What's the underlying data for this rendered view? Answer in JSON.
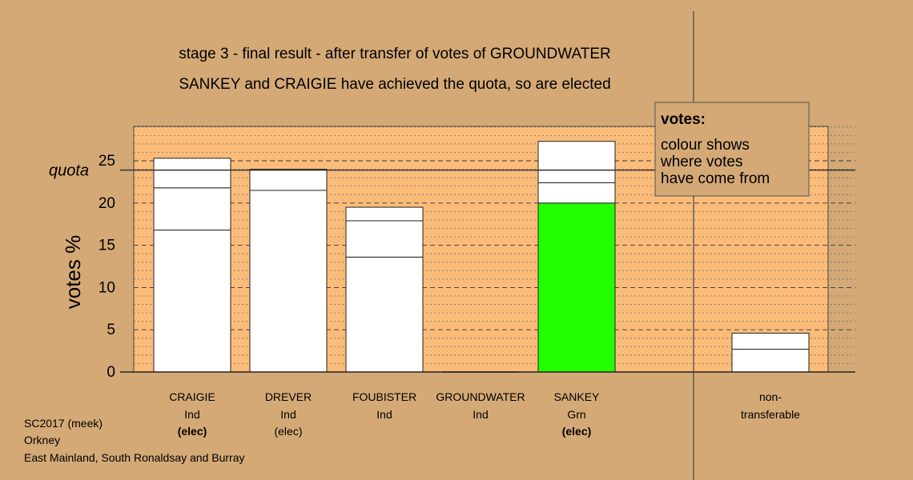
{
  "chart_data": {
    "type": "bar",
    "title": "stage 3 - final result - after transfer of votes of GROUNDWATER",
    "subtitle": "SANKEY and CRAIGIE have achieved the quota, so are elected",
    "ylabel": "votes %",
    "ylim": [
      0,
      29
    ],
    "yticks": [
      0,
      5,
      10,
      15,
      20,
      25
    ],
    "grid": true,
    "quota": {
      "label": "quota",
      "value": 23.9
    },
    "categories": [
      {
        "name": "CRAIGIE",
        "party": "Ind",
        "status": "(elec)",
        "status_bold": true
      },
      {
        "name": "DREVER",
        "party": "Ind",
        "status": "(elec)",
        "status_bold": false
      },
      {
        "name": "FOUBISTER",
        "party": "Ind",
        "status": "",
        "status_bold": false
      },
      {
        "name": "GROUNDWATER",
        "party": "Ind",
        "status": "",
        "status_bold": false
      },
      {
        "name": "SANKEY",
        "party": "Grn",
        "status": "(elec)",
        "status_bold": true
      }
    ],
    "segments": [
      [
        {
          "value": 16.8,
          "color": "#ffffff"
        },
        {
          "value": 5.0,
          "color": "#ffffff"
        },
        {
          "value": 3.5,
          "color": "#ffffff"
        }
      ],
      [
        {
          "value": 21.5,
          "color": "#ffffff"
        },
        {
          "value": 2.5,
          "color": "#ffffff"
        }
      ],
      [
        {
          "value": 13.6,
          "color": "#ffffff"
        },
        {
          "value": 4.3,
          "color": "#ffffff"
        },
        {
          "value": 1.6,
          "color": "#ffffff"
        }
      ],
      [],
      [
        {
          "value": 20.0,
          "color": "#22ff00"
        },
        {
          "value": 2.4,
          "color": "#ffffff"
        },
        {
          "value": 4.9,
          "color": "#ffffff"
        }
      ]
    ],
    "nontransferable": {
      "label_line1": "non-",
      "label_line2": "transferable",
      "segments": [
        {
          "value": 2.7,
          "color": "#ffffff"
        },
        {
          "value": 1.9,
          "color": "#ffffff"
        }
      ]
    },
    "legend": {
      "title": "votes:",
      "lines": [
        "colour shows",
        "where votes",
        "have come from"
      ],
      "placement": "top-right"
    }
  },
  "footer": {
    "line1": "SC2017 (meek)",
    "line2": "Orkney",
    "line3": "East Mainland, South Ronaldsay and Burray"
  },
  "colors": {
    "background": "#d4a976",
    "plot_area": "#fbbc7a",
    "elected": "#22ff00"
  }
}
